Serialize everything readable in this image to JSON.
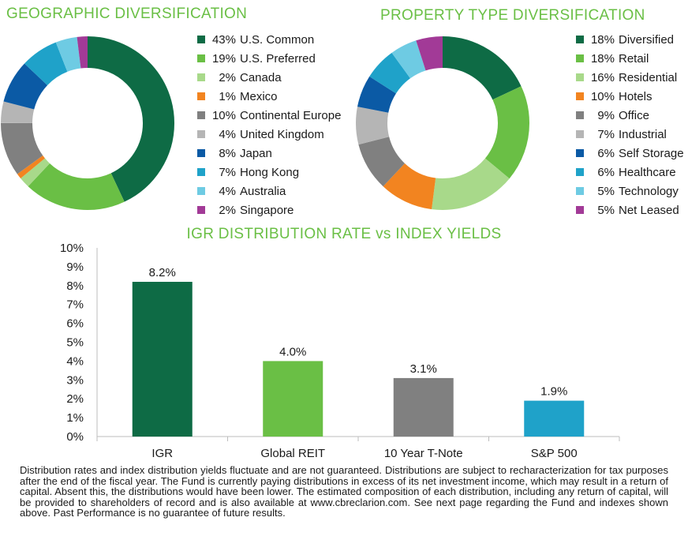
{
  "chart_data": [
    {
      "type": "pie",
      "title": "GEOGRAPHIC DIVERSIFICATION",
      "categories": [
        "U.S. Common",
        "U.S. Preferred",
        "Canada",
        "Mexico",
        "Continental Europe",
        "United Kingdom",
        "Japan",
        "Hong Kong",
        "Australia",
        "Singapore"
      ],
      "values": [
        43,
        19,
        2,
        1,
        10,
        4,
        8,
        7,
        4,
        2
      ],
      "labels": [
        "43%",
        "19%",
        "2%",
        "1%",
        "10%",
        "4%",
        "8%",
        "7%",
        "4%",
        "2%"
      ],
      "colors": [
        "#0e6b45",
        "#6abf45",
        "#a8d98a",
        "#f28420",
        "#808080",
        "#b5b5b5",
        "#0b5aa5",
        "#1fa2c9",
        "#6ecbe3",
        "#a23a97"
      ]
    },
    {
      "type": "pie",
      "title": "PROPERTY TYPE DIVERSIFICATION",
      "categories": [
        "Diversified",
        "Retail",
        "Residential",
        "Hotels",
        "Office",
        "Industrial",
        "Self Storage",
        "Healthcare",
        "Technology",
        "Net Leased"
      ],
      "values": [
        18,
        18,
        16,
        10,
        9,
        7,
        6,
        6,
        5,
        5
      ],
      "labels": [
        "18%",
        "18%",
        "16%",
        "10%",
        "9%",
        "7%",
        "6%",
        "6%",
        "5%",
        "5%"
      ],
      "colors": [
        "#0e6b45",
        "#6abf45",
        "#a8d98a",
        "#f28420",
        "#808080",
        "#b5b5b5",
        "#0b5aa5",
        "#1fa2c9",
        "#6ecbe3",
        "#a23a97"
      ]
    },
    {
      "type": "bar",
      "title": "IGR DISTRIBUTION RATE vs INDEX YIELDS",
      "categories": [
        "IGR",
        "Global REIT",
        "10 Year T-Note",
        "S&P 500"
      ],
      "values": [
        8.2,
        4.0,
        3.1,
        1.9
      ],
      "data_labels": [
        "8.2%",
        "4.0%",
        "3.1%",
        "1.9%"
      ],
      "colors": [
        "#0e6b45",
        "#6abf45",
        "#808080",
        "#1fa2c9"
      ],
      "ylim": [
        0,
        10
      ],
      "yticks": [
        "0%",
        "1%",
        "2%",
        "3%",
        "4%",
        "5%",
        "6%",
        "7%",
        "8%",
        "9%",
        "10%"
      ],
      "xlabel": "",
      "ylabel": ""
    }
  ],
  "footnote": "Distribution rates and index distribution yields fluctuate and are not guaranteed. Distributions are subject to recharacterization for tax purposes after the end of the fiscal year. The Fund is currently paying distributions in excess of its net investment income, which may result in a return of capital. Absent this, the distributions would have been lower.  The estimated composition of each distribution, including any return of capital, will be provided to shareholders of record and is also available at www.cbreclarion.com. See next page regarding the Fund and indexes shown above. Past Performance is no guarantee of future results."
}
